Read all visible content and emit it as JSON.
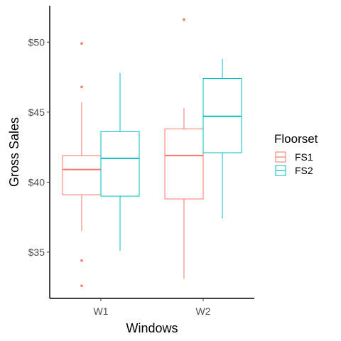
{
  "chart_data": {
    "type": "boxplot",
    "xlabel": "Windows",
    "ylabel": "Gross Sales",
    "categories": [
      "W1",
      "W2"
    ],
    "y_tick_values": [
      35,
      40,
      45,
      50
    ],
    "y_tick_labels": [
      "$35",
      "$40",
      "$45",
      "$50"
    ],
    "ylim": [
      31.7,
      52.6
    ],
    "grid": false,
    "legend": {
      "title": "Floorset",
      "position": "right",
      "entries": [
        {
          "label": "FS1",
          "color": "#F8766D"
        },
        {
          "label": "FS2",
          "color": "#00BFC4"
        }
      ]
    },
    "series": [
      {
        "name": "FS1",
        "color": "#F8766D",
        "boxes": [
          {
            "category": "W1",
            "min": 36.5,
            "q1": 39.1,
            "median": 40.9,
            "q3": 41.9,
            "max": 45.7,
            "outliers": [
              49.9,
              46.8,
              34.4,
              32.6
            ]
          },
          {
            "category": "W2",
            "min": 33.1,
            "q1": 38.8,
            "median": 41.9,
            "q3": 43.8,
            "max": 45.3,
            "outliers": [
              51.6
            ]
          }
        ]
      },
      {
        "name": "FS2",
        "color": "#00BFC4",
        "boxes": [
          {
            "category": "W1",
            "min": 35.1,
            "q1": 39.0,
            "median": 41.7,
            "q3": 43.6,
            "max": 47.8,
            "outliers": []
          },
          {
            "category": "W2",
            "min": 37.4,
            "q1": 42.1,
            "median": 44.7,
            "q3": 47.4,
            "max": 48.8,
            "outliers": []
          }
        ]
      }
    ]
  }
}
